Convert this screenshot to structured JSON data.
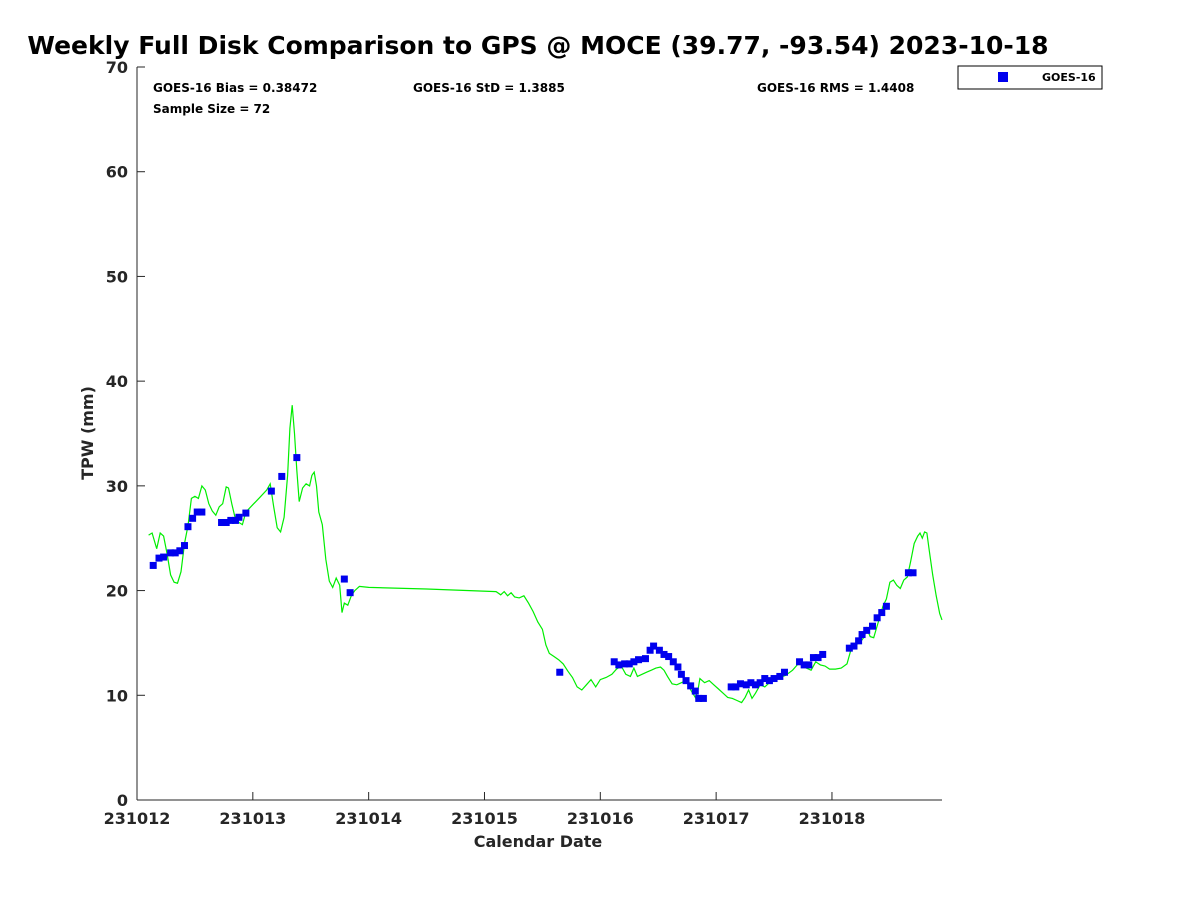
{
  "chart_data": {
    "type": "scatter",
    "title": "Weekly Full Disk Comparison to GPS @ MOCE (39.77, -93.54) 2023-10-18",
    "xlabel": "Calendar Date",
    "ylabel": "TPW (mm)",
    "xlim": [
      0,
      6.95
    ],
    "ylim": [
      0,
      70
    ],
    "x_ticks": [
      0,
      1,
      2,
      3,
      4,
      5,
      6
    ],
    "x_tick_labels": [
      "231012",
      "231013",
      "231014",
      "231015",
      "231016",
      "231017",
      "231018"
    ],
    "y_ticks": [
      0,
      10,
      20,
      30,
      40,
      50,
      60,
      70
    ],
    "y_tick_labels": [
      "0",
      "10",
      "20",
      "30",
      "40",
      "50",
      "60",
      "70"
    ],
    "stats": {
      "bias": "GOES-16 Bias = 0.38472",
      "std": "GOES-16 StD = 1.3885",
      "rms": "GOES-16 RMS = 1.4408",
      "sample_size": "Sample Size = 72"
    },
    "legend": {
      "label": "GOES-16",
      "position": "top-right outside"
    },
    "colors": {
      "goes": "#0000ee",
      "gps": "#00ee00",
      "axis": "#262626"
    },
    "series": [
      {
        "name": "GOES-16",
        "kind": "markers",
        "points": [
          [
            0.14,
            22.4
          ],
          [
            0.19,
            23.1
          ],
          [
            0.23,
            23.2
          ],
          [
            0.29,
            23.6
          ],
          [
            0.33,
            23.6
          ],
          [
            0.37,
            23.8
          ],
          [
            0.41,
            24.3
          ],
          [
            0.44,
            26.1
          ],
          [
            0.48,
            26.9
          ],
          [
            0.52,
            27.5
          ],
          [
            0.56,
            27.5
          ],
          [
            0.73,
            26.5
          ],
          [
            0.77,
            26.5
          ],
          [
            0.81,
            26.7
          ],
          [
            0.85,
            26.7
          ],
          [
            0.88,
            27.0
          ],
          [
            0.94,
            27.4
          ],
          [
            1.16,
            29.5
          ],
          [
            1.25,
            30.9
          ],
          [
            1.38,
            32.7
          ],
          [
            1.79,
            21.1
          ],
          [
            1.84,
            19.8
          ],
          [
            3.65,
            12.2
          ],
          [
            4.12,
            13.2
          ],
          [
            4.16,
            12.9
          ],
          [
            4.21,
            13.0
          ],
          [
            4.25,
            13.0
          ],
          [
            4.29,
            13.2
          ],
          [
            4.33,
            13.4
          ],
          [
            4.39,
            13.5
          ],
          [
            4.43,
            14.3
          ],
          [
            4.46,
            14.7
          ],
          [
            4.51,
            14.3
          ],
          [
            4.55,
            13.9
          ],
          [
            4.59,
            13.7
          ],
          [
            4.63,
            13.2
          ],
          [
            4.67,
            12.7
          ],
          [
            4.7,
            12.0
          ],
          [
            4.74,
            11.4
          ],
          [
            4.78,
            10.9
          ],
          [
            4.82,
            10.4
          ],
          [
            4.85,
            9.7
          ],
          [
            4.89,
            9.7
          ],
          [
            5.13,
            10.8
          ],
          [
            5.17,
            10.8
          ],
          [
            5.21,
            11.1
          ],
          [
            5.26,
            11.0
          ],
          [
            5.3,
            11.2
          ],
          [
            5.34,
            11.0
          ],
          [
            5.38,
            11.2
          ],
          [
            5.42,
            11.6
          ],
          [
            5.46,
            11.4
          ],
          [
            5.5,
            11.6
          ],
          [
            5.55,
            11.8
          ],
          [
            5.59,
            12.2
          ],
          [
            5.72,
            13.2
          ],
          [
            5.76,
            12.9
          ],
          [
            5.8,
            12.9
          ],
          [
            5.84,
            13.6
          ],
          [
            5.88,
            13.6
          ],
          [
            5.92,
            13.9
          ],
          [
            6.15,
            14.5
          ],
          [
            6.19,
            14.7
          ],
          [
            6.23,
            15.2
          ],
          [
            6.26,
            15.8
          ],
          [
            6.3,
            16.2
          ],
          [
            6.35,
            16.6
          ],
          [
            6.39,
            17.4
          ],
          [
            6.43,
            17.9
          ],
          [
            6.47,
            18.5
          ],
          [
            6.66,
            21.7
          ],
          [
            6.7,
            21.7
          ]
        ]
      },
      {
        "name": "GPS",
        "kind": "line",
        "points": [
          [
            0.1,
            25.3
          ],
          [
            0.13,
            25.5
          ],
          [
            0.17,
            24.0
          ],
          [
            0.2,
            25.5
          ],
          [
            0.23,
            25.2
          ],
          [
            0.26,
            23.5
          ],
          [
            0.29,
            21.5
          ],
          [
            0.32,
            20.8
          ],
          [
            0.35,
            20.7
          ],
          [
            0.38,
            21.8
          ],
          [
            0.41,
            24.5
          ],
          [
            0.44,
            26.2
          ],
          [
            0.47,
            28.8
          ],
          [
            0.5,
            29.0
          ],
          [
            0.53,
            28.8
          ],
          [
            0.56,
            30.0
          ],
          [
            0.59,
            29.6
          ],
          [
            0.62,
            28.3
          ],
          [
            0.65,
            27.6
          ],
          [
            0.68,
            27.2
          ],
          [
            0.71,
            28.0
          ],
          [
            0.74,
            28.3
          ],
          [
            0.77,
            29.9
          ],
          [
            0.79,
            29.8
          ],
          [
            0.82,
            28.2
          ],
          [
            0.85,
            26.8
          ],
          [
            0.88,
            26.5
          ],
          [
            0.91,
            26.3
          ],
          [
            0.94,
            27.5
          ],
          [
            1.0,
            28.2
          ],
          [
            1.06,
            28.9
          ],
          [
            1.12,
            29.6
          ],
          [
            1.15,
            30.2
          ],
          [
            1.18,
            28.0
          ],
          [
            1.21,
            26.0
          ],
          [
            1.24,
            25.6
          ],
          [
            1.27,
            27.0
          ],
          [
            1.3,
            31.0
          ],
          [
            1.32,
            35.5
          ],
          [
            1.34,
            37.7
          ],
          [
            1.36,
            35.0
          ],
          [
            1.38,
            31.5
          ],
          [
            1.4,
            28.5
          ],
          [
            1.43,
            29.8
          ],
          [
            1.46,
            30.2
          ],
          [
            1.49,
            30.0
          ],
          [
            1.51,
            31.0
          ],
          [
            1.53,
            31.3
          ],
          [
            1.55,
            30.0
          ],
          [
            1.57,
            27.5
          ],
          [
            1.6,
            26.3
          ],
          [
            1.63,
            23.0
          ],
          [
            1.66,
            20.9
          ],
          [
            1.69,
            20.3
          ],
          [
            1.72,
            21.2
          ],
          [
            1.75,
            20.5
          ],
          [
            1.77,
            17.9
          ],
          [
            1.79,
            18.8
          ],
          [
            1.82,
            18.6
          ],
          [
            1.85,
            19.5
          ],
          [
            1.88,
            20.0
          ],
          [
            1.92,
            20.4
          ],
          [
            2.0,
            20.3
          ],
          [
            2.5,
            20.15
          ],
          [
            3.1,
            19.9
          ],
          [
            3.14,
            19.6
          ],
          [
            3.17,
            19.9
          ],
          [
            3.2,
            19.5
          ],
          [
            3.23,
            19.8
          ],
          [
            3.26,
            19.4
          ],
          [
            3.3,
            19.3
          ],
          [
            3.34,
            19.5
          ],
          [
            3.38,
            18.8
          ],
          [
            3.42,
            18.0
          ],
          [
            3.46,
            17.0
          ],
          [
            3.5,
            16.3
          ],
          [
            3.53,
            14.8
          ],
          [
            3.56,
            14.0
          ],
          [
            3.6,
            13.7
          ],
          [
            3.64,
            13.4
          ],
          [
            3.68,
            13.0
          ],
          [
            3.72,
            12.3
          ],
          [
            3.76,
            11.7
          ],
          [
            3.8,
            10.8
          ],
          [
            3.84,
            10.5
          ],
          [
            3.88,
            11.0
          ],
          [
            3.92,
            11.5
          ],
          [
            3.96,
            10.8
          ],
          [
            4.0,
            11.5
          ],
          [
            4.05,
            11.7
          ],
          [
            4.1,
            12.0
          ],
          [
            4.14,
            12.5
          ],
          [
            4.18,
            12.8
          ],
          [
            4.22,
            12.0
          ],
          [
            4.26,
            11.8
          ],
          [
            4.29,
            12.6
          ],
          [
            4.32,
            11.8
          ],
          [
            4.36,
            12.0
          ],
          [
            4.4,
            12.2
          ],
          [
            4.44,
            12.4
          ],
          [
            4.48,
            12.6
          ],
          [
            4.52,
            12.7
          ],
          [
            4.55,
            12.4
          ],
          [
            4.58,
            11.8
          ],
          [
            4.62,
            11.1
          ],
          [
            4.66,
            11.0
          ],
          [
            4.7,
            11.2
          ],
          [
            4.74,
            11.4
          ],
          [
            4.78,
            10.5
          ],
          [
            4.82,
            9.8
          ],
          [
            4.84,
            10.3
          ],
          [
            4.86,
            11.6
          ],
          [
            4.9,
            11.2
          ],
          [
            4.94,
            11.4
          ],
          [
            4.98,
            11.0
          ],
          [
            5.02,
            10.6
          ],
          [
            5.06,
            10.2
          ],
          [
            5.1,
            9.8
          ],
          [
            5.14,
            9.7
          ],
          [
            5.18,
            9.5
          ],
          [
            5.22,
            9.3
          ],
          [
            5.25,
            9.8
          ],
          [
            5.28,
            10.5
          ],
          [
            5.31,
            9.7
          ],
          [
            5.34,
            10.2
          ],
          [
            5.38,
            11.0
          ],
          [
            5.42,
            10.8
          ],
          [
            5.46,
            11.2
          ],
          [
            5.5,
            11.5
          ],
          [
            5.55,
            11.7
          ],
          [
            5.6,
            11.9
          ],
          [
            5.66,
            12.4
          ],
          [
            5.7,
            12.9
          ],
          [
            5.74,
            13.2
          ],
          [
            5.78,
            12.6
          ],
          [
            5.82,
            12.4
          ],
          [
            5.86,
            13.2
          ],
          [
            5.9,
            12.9
          ],
          [
            5.94,
            12.8
          ],
          [
            5.98,
            12.5
          ],
          [
            6.03,
            12.5
          ],
          [
            6.08,
            12.6
          ],
          [
            6.13,
            13.0
          ],
          [
            6.16,
            14.2
          ],
          [
            6.2,
            14.8
          ],
          [
            6.24,
            15.0
          ],
          [
            6.28,
            15.6
          ],
          [
            6.3,
            16.4
          ],
          [
            6.33,
            15.6
          ],
          [
            6.36,
            15.5
          ],
          [
            6.4,
            17.0
          ],
          [
            6.44,
            18.5
          ],
          [
            6.47,
            19.2
          ],
          [
            6.5,
            20.8
          ],
          [
            6.53,
            21.0
          ],
          [
            6.56,
            20.5
          ],
          [
            6.59,
            20.2
          ],
          [
            6.62,
            21.0
          ],
          [
            6.65,
            21.3
          ],
          [
            6.68,
            22.8
          ],
          [
            6.71,
            24.5
          ],
          [
            6.74,
            25.2
          ],
          [
            6.76,
            25.5
          ],
          [
            6.78,
            25.0
          ],
          [
            6.8,
            25.6
          ],
          [
            6.82,
            25.5
          ],
          [
            6.84,
            23.8
          ],
          [
            6.87,
            21.5
          ],
          [
            6.9,
            19.5
          ],
          [
            6.93,
            17.8
          ],
          [
            6.95,
            17.2
          ]
        ]
      }
    ]
  }
}
